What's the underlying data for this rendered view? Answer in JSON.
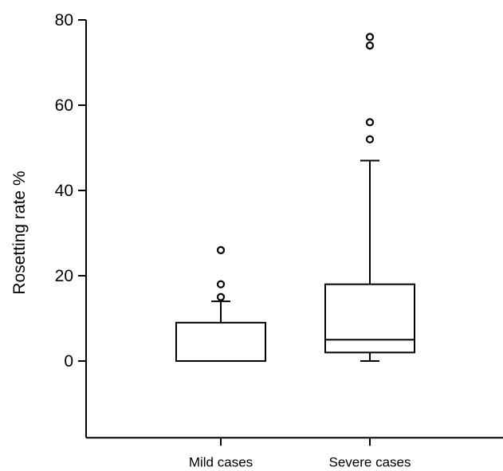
{
  "chart_data": {
    "type": "box",
    "ylabel": "Rosetting rate %",
    "xlabel": "",
    "ylim": [
      -18,
      80
    ],
    "yticks": [
      0,
      20,
      40,
      60,
      80
    ],
    "ytick_labels": [
      "0",
      "20",
      "40",
      "60",
      "80"
    ],
    "grid": false,
    "legend": "none",
    "categories": [
      "Mild cases",
      "Severe cases"
    ],
    "boxes": [
      {
        "category": "Mild cases",
        "whisker_low": 0,
        "q1": 0,
        "median": 0,
        "q3": 9,
        "whisker_high": 14,
        "outliers": [
          15,
          18,
          26
        ]
      },
      {
        "category": "Severe cases",
        "whisker_low": 0,
        "q1": 2,
        "median": 5,
        "q3": 18,
        "whisker_high": 47,
        "outliers": [
          52,
          56,
          74,
          76
        ]
      }
    ],
    "colors": {
      "stroke": "#000000",
      "background": "#ffffff"
    }
  }
}
